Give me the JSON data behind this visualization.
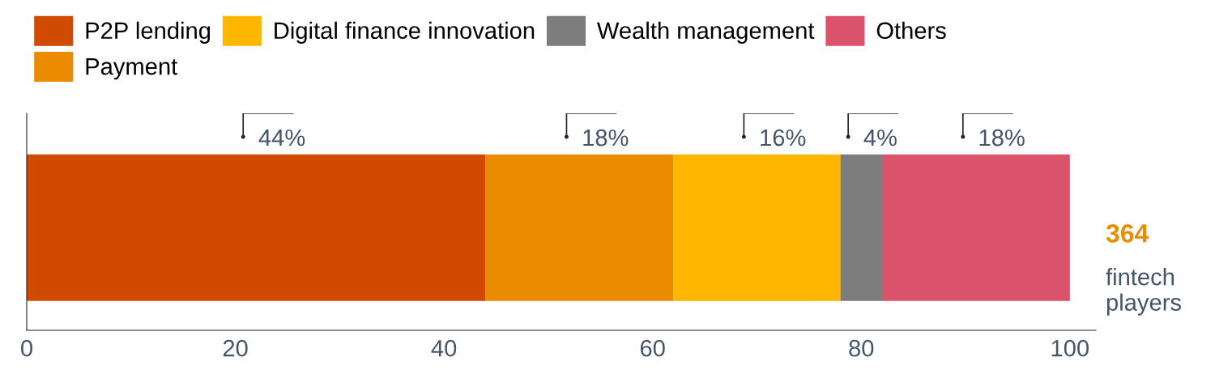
{
  "chart_data": {
    "type": "bar",
    "orientation": "horizontal",
    "stacked": true,
    "categories": [
      null
    ],
    "series": [
      {
        "name": "P2P lending",
        "color": "#d04a02",
        "values": [
          44
        ],
        "value_labels": [
          "44%"
        ]
      },
      {
        "name": "Payment",
        "color": "#eb8c00",
        "values": [
          18
        ],
        "value_labels": [
          "18%"
        ]
      },
      {
        "name": "Digital finance innovation",
        "color": "#ffb600",
        "values": [
          16
        ],
        "value_labels": [
          "16%"
        ]
      },
      {
        "name": "Wealth management",
        "color": "#7d7d7d",
        "values": [
          4
        ],
        "value_labels": [
          "4%"
        ]
      },
      {
        "name": "Others",
        "color": "#db536a",
        "values": [
          18
        ],
        "value_labels": [
          "18%"
        ]
      }
    ],
    "xlim": [
      0,
      102.5
    ],
    "xticks": [
      0,
      20,
      40,
      60,
      80,
      100
    ],
    "grid": false,
    "legend": "top left",
    "annotations": [
      "364",
      "fintech players"
    ]
  }
}
